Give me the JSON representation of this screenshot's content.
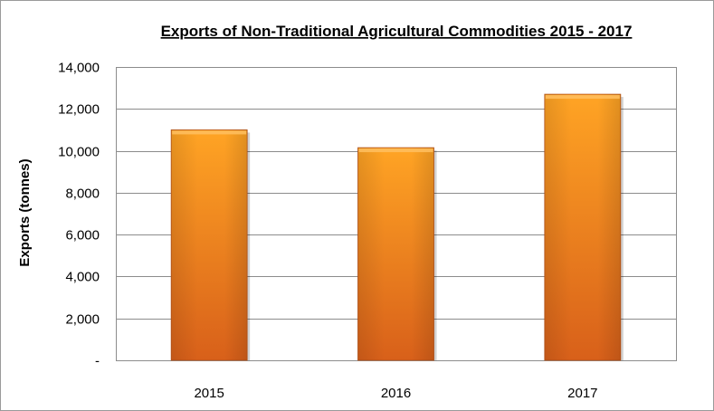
{
  "chart_data": {
    "type": "bar",
    "title": "Exports of Non-Traditional Agricultural Commodities 2015 - 2017",
    "xlabel": "",
    "ylabel": "Exports (tonnes)",
    "categories": [
      "2015",
      "2016",
      "2017"
    ],
    "values": [
      11000,
      10150,
      12700
    ],
    "ylim": [
      0,
      14000
    ],
    "yticks": [
      0,
      2000,
      4000,
      6000,
      8000,
      10000,
      12000,
      14000
    ],
    "ytick_labels": [
      "-",
      "2,000",
      "4,000",
      "6,000",
      "8,000",
      "10,000",
      "12,000",
      "14,000"
    ],
    "grid": true,
    "legend": "none",
    "colors": {
      "bar_light": "#FFA020",
      "bar_dark": "#D9621A",
      "bar_top": "#FFC060",
      "grid": "#8c8c8c"
    }
  }
}
